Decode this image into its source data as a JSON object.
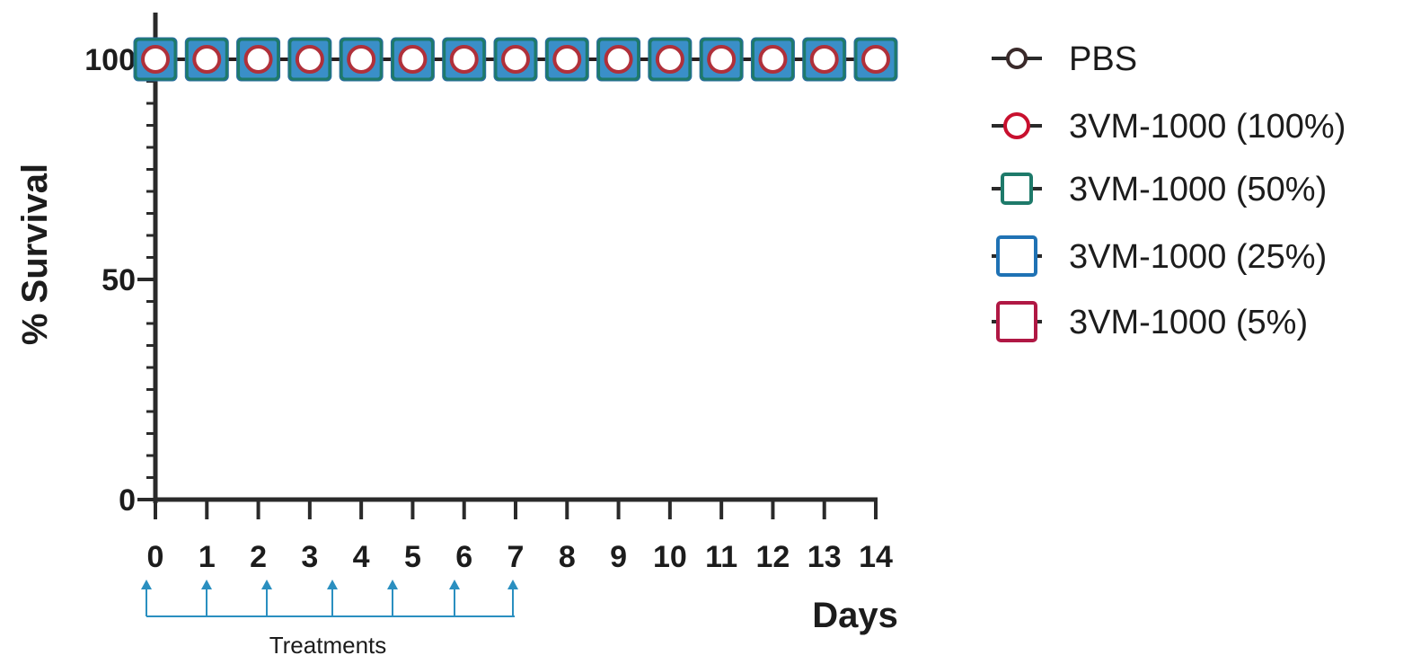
{
  "chart_data": {
    "type": "line",
    "title": "",
    "xlabel": "Days",
    "ylabel": "% Survival",
    "x": [
      0,
      1,
      2,
      3,
      4,
      5,
      6,
      7,
      8,
      9,
      10,
      11,
      12,
      13,
      14
    ],
    "xlim": [
      0,
      14
    ],
    "ylim": [
      0,
      100
    ],
    "yticks": [
      0,
      50,
      100
    ],
    "grid": false,
    "legend_position": "right",
    "series": [
      {
        "name": "PBS",
        "values": [
          100,
          100,
          100,
          100,
          100,
          100,
          100,
          100,
          100,
          100,
          100,
          100,
          100,
          100,
          100
        ],
        "color": "#3a2a2a",
        "marker": "circle"
      },
      {
        "name": "3VM-1000 (100%)",
        "values": [
          100,
          100,
          100,
          100,
          100,
          100,
          100,
          100,
          100,
          100,
          100,
          100,
          100,
          100,
          100
        ],
        "color": "#c8102e",
        "marker": "circle"
      },
      {
        "name": "3VM-1000 (50%)",
        "values": [
          100,
          100,
          100,
          100,
          100,
          100,
          100,
          100,
          100,
          100,
          100,
          100,
          100,
          100,
          100
        ],
        "color": "#1e7a6a",
        "marker": "square"
      },
      {
        "name": "3VM-1000 (25%)",
        "values": [
          100,
          100,
          100,
          100,
          100,
          100,
          100,
          100,
          100,
          100,
          100,
          100,
          100,
          100,
          100
        ],
        "color": "#1f72b4",
        "marker": "square"
      },
      {
        "name": "3VM-1000 (5%)",
        "values": [
          100,
          100,
          100,
          100,
          100,
          100,
          100,
          100,
          100,
          100,
          100,
          100,
          100,
          100,
          100
        ],
        "color": "#b01844",
        "marker": "square"
      }
    ],
    "annotation": {
      "label": "Treatments",
      "treatment_days": [
        0,
        1,
        2,
        3,
        4,
        5,
        6,
        7
      ],
      "color": "#2a8fc0"
    }
  }
}
